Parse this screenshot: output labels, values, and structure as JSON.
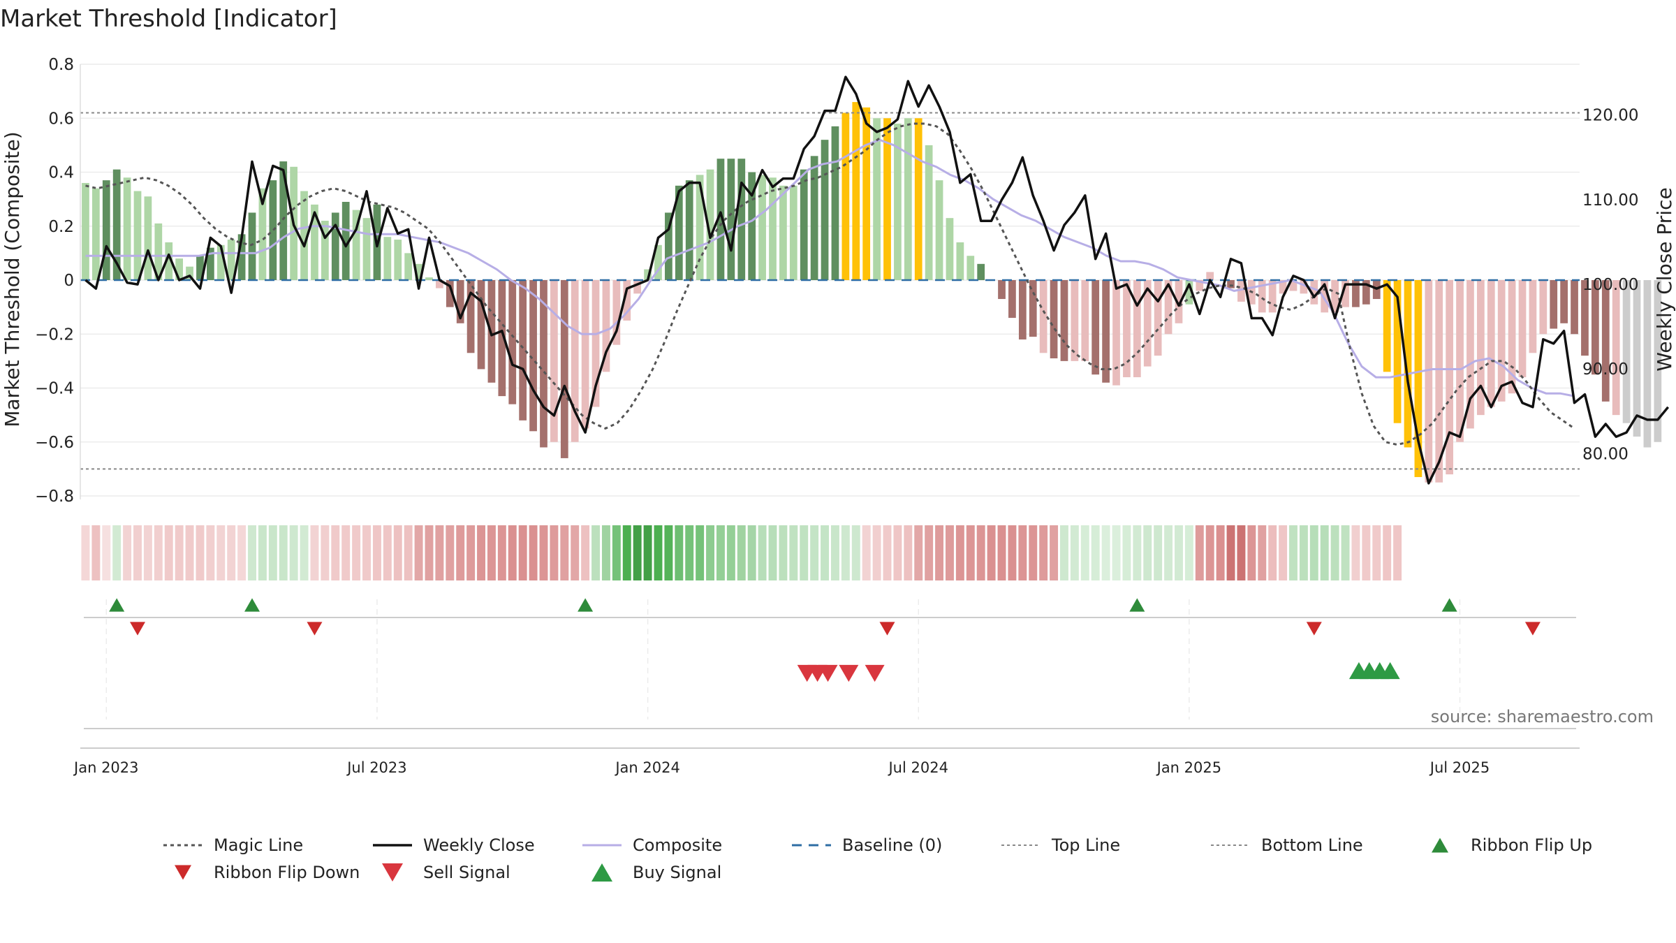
{
  "title": "Market Threshold [Indicator]",
  "source": "source: sharemaestro.com",
  "chart_data": {
    "type": "bar",
    "ylabel": "Market Threshold (Composite)",
    "ylabel_right": "Weekly Close Price",
    "ylim": [
      -0.8,
      0.8
    ],
    "ylim_right": [
      75,
      126
    ],
    "y_ticks": [
      {
        "v": 0.8,
        "label": "0.8"
      },
      {
        "v": 0.6,
        "label": "0.6"
      },
      {
        "v": 0.4,
        "label": "0.4"
      },
      {
        "v": 0.2,
        "label": "0.2"
      },
      {
        "v": 0,
        "label": "0"
      },
      {
        "v": -0.2,
        "label": "−0.2"
      },
      {
        "v": -0.4,
        "label": "−0.4"
      },
      {
        "v": -0.6,
        "label": "−0.6"
      },
      {
        "v": -0.8,
        "label": "−0.8"
      }
    ],
    "y_ticks_right": [
      {
        "v": 120,
        "label": "120.00"
      },
      {
        "v": 110,
        "label": "110.00"
      },
      {
        "v": 100,
        "label": "100.00"
      },
      {
        "v": 90,
        "label": "90.00"
      },
      {
        "v": 80,
        "label": "80.00"
      }
    ],
    "x_ticks": [
      {
        "w": 2.5,
        "label": "Jan 2023"
      },
      {
        "w": 28.5,
        "label": "Jul 2023"
      },
      {
        "w": 54.5,
        "label": "Jan 2024"
      },
      {
        "w": 80.5,
        "label": "Jul 2024"
      },
      {
        "w": 106.5,
        "label": "Jan 2025"
      },
      {
        "w": 132.5,
        "label": "Jul 2025"
      }
    ],
    "weeks": 144,
    "top_line": 0.62,
    "bottom_line": -0.7,
    "composite": [
      0.36,
      0.34,
      0.37,
      0.41,
      0.38,
      0.33,
      0.31,
      0.21,
      0.14,
      0.08,
      0.05,
      0.09,
      0.12,
      0.13,
      0.15,
      0.17,
      0.25,
      0.34,
      0.37,
      0.44,
      0.42,
      0.33,
      0.28,
      0.22,
      0.25,
      0.29,
      0.26,
      0.23,
      0.28,
      0.16,
      0.15,
      0.1,
      0.06,
      0.01,
      -0.03,
      -0.1,
      -0.16,
      -0.27,
      -0.33,
      -0.38,
      -0.43,
      -0.46,
      -0.52,
      -0.56,
      -0.62,
      -0.6,
      -0.66,
      -0.6,
      -0.55,
      -0.47,
      -0.34,
      -0.24,
      -0.15,
      -0.05,
      0.04,
      0.13,
      0.25,
      0.35,
      0.37,
      0.39,
      0.41,
      0.45,
      0.45,
      0.45,
      0.4,
      0.39,
      0.38,
      0.35,
      0.35,
      0.41,
      0.46,
      0.52,
      0.57,
      0.62,
      0.66,
      0.64,
      0.6,
      0.6,
      0.58,
      0.6,
      0.6,
      0.5,
      0.37,
      0.23,
      0.14,
      0.09,
      0.06,
      0.0,
      -0.07,
      -0.14,
      -0.22,
      -0.21,
      -0.27,
      -0.29,
      -0.3,
      -0.3,
      -0.3,
      -0.35,
      -0.38,
      -0.39,
      -0.36,
      -0.36,
      -0.32,
      -0.28,
      -0.2,
      -0.16,
      -0.09,
      -0.04,
      0.03,
      0.0,
      -0.03,
      -0.08,
      -0.09,
      -0.12,
      -0.12,
      -0.05,
      -0.04,
      -0.05,
      -0.09,
      -0.12,
      -0.12,
      -0.1,
      -0.1,
      -0.09,
      -0.07,
      -0.34,
      -0.53,
      -0.62,
      -0.73,
      -0.75,
      -0.75,
      -0.72,
      -0.6,
      -0.55,
      -0.5,
      -0.47,
      -0.45,
      -0.42,
      -0.36,
      -0.27,
      -0.2,
      -0.18,
      -0.16,
      -0.2,
      -0.28,
      -0.35,
      -0.45,
      -0.5,
      -0.53,
      -0.58,
      -0.62,
      -0.6
    ],
    "bar_colors": [
      "#aed6a6",
      "#aed6a6",
      "#5f8f5f",
      "#5f8f5f",
      "#aed6a6",
      "#aed6a6",
      "#aed6a6",
      "#aed6a6",
      "#aed6a6",
      "#aed6a6",
      "#aed6a6",
      "#5f8f5f",
      "#5f8f5f",
      "#aed6a6",
      "#aed6a6",
      "#5f8f5f",
      "#5f8f5f",
      "#aed6a6",
      "#5f8f5f",
      "#5f8f5f",
      "#aed6a6",
      "#aed6a6",
      "#aed6a6",
      "#aed6a6",
      "#5f8f5f",
      "#5f8f5f",
      "#aed6a6",
      "#aed6a6",
      "#5f8f5f",
      "#aed6a6",
      "#aed6a6",
      "#aed6a6",
      "#aed6a6",
      "#aed6a6",
      "#e8bcbc",
      "#a4706c",
      "#a4706c",
      "#a4706c",
      "#a4706c",
      "#a4706c",
      "#a4706c",
      "#a4706c",
      "#a4706c",
      "#a4706c",
      "#a4706c",
      "#e8bcbc",
      "#a4706c",
      "#e8bcbc",
      "#e8bcbc",
      "#e8bcbc",
      "#e8bcbc",
      "#e8bcbc",
      "#e8bcbc",
      "#e8bcbc",
      "#aed6a6",
      "#aed6a6",
      "#5f8f5f",
      "#5f8f5f",
      "#5f8f5f",
      "#aed6a6",
      "#aed6a6",
      "#5f8f5f",
      "#5f8f5f",
      "#5f8f5f",
      "#5f8f5f",
      "#aed6a6",
      "#aed6a6",
      "#aed6a6",
      "#aed6a6",
      "#5f8f5f",
      "#5f8f5f",
      "#5f8f5f",
      "#5f8f5f",
      "#ffc107",
      "#ffc107",
      "#ffc107",
      "#aed6a6",
      "#ffc107",
      "#aed6a6",
      "#aed6a6",
      "#ffc107",
      "#aed6a6",
      "#aed6a6",
      "#aed6a6",
      "#aed6a6",
      "#aed6a6",
      "#5f8f5f",
      "#aed6a6",
      "#a4706c",
      "#a4706c",
      "#a4706c",
      "#a4706c",
      "#e8bcbc",
      "#a4706c",
      "#a4706c",
      "#e8bcbc",
      "#e8bcbc",
      "#a4706c",
      "#a4706c",
      "#e8bcbc",
      "#e8bcbc",
      "#e8bcbc",
      "#e8bcbc",
      "#e8bcbc",
      "#e8bcbc",
      "#e8bcbc",
      "#aed6a6",
      "#e8bcbc",
      "#e8bcbc",
      "#a4706c",
      "#a4706c",
      "#e8bcbc",
      "#e8bcbc",
      "#e8bcbc",
      "#e8bcbc",
      "#e8bcbc",
      "#e8bcbc",
      "#e8bcbc",
      "#e8bcbc",
      "#e8bcbc",
      "#e8bcbc",
      "#e8bcbc",
      "#a4706c",
      "#a4706c",
      "#a4706c",
      "#ffc107",
      "#ffc107",
      "#ffc107",
      "#ffc107",
      "#e8bcbc",
      "#e8bcbc",
      "#e8bcbc",
      "#e8bcbc",
      "#e8bcbc",
      "#e8bcbc",
      "#e8bcbc",
      "#e8bcbc",
      "#e8bcbc",
      "#e8bcbc",
      "#e8bcbc",
      "#e8bcbc",
      "#a4706c",
      "#a4706c",
      "#a4706c",
      "#a4706c",
      "#a4706c",
      "#a4706c",
      "#e8bcbc"
    ],
    "magic_line": [
      0.35,
      0.34,
      0.35,
      0.36,
      0.37,
      0.38,
      0.37,
      0.35,
      0.32,
      0.28,
      0.23,
      0.19,
      0.16,
      0.14,
      0.13,
      0.15,
      0.19,
      0.24,
      0.28,
      0.31,
      0.33,
      0.34,
      0.33,
      0.31,
      0.29,
      0.28,
      0.27,
      0.25,
      0.22,
      0.19,
      0.14,
      0.08,
      0.02,
      -0.04,
      -0.1,
      -0.15,
      -0.2,
      -0.25,
      -0.3,
      -0.35,
      -0.4,
      -0.45,
      -0.5,
      -0.53,
      -0.55,
      -0.53,
      -0.48,
      -0.41,
      -0.33,
      -0.23,
      -0.12,
      -0.02,
      0.08,
      0.16,
      0.22,
      0.26,
      0.29,
      0.31,
      0.33,
      0.34,
      0.35,
      0.37,
      0.38,
      0.4,
      0.42,
      0.45,
      0.48,
      0.52,
      0.55,
      0.57,
      0.58,
      0.58,
      0.57,
      0.54,
      0.48,
      0.41,
      0.33,
      0.24,
      0.15,
      0.06,
      -0.03,
      -0.11,
      -0.18,
      -0.24,
      -0.28,
      -0.31,
      -0.33,
      -0.33,
      -0.31,
      -0.27,
      -0.22,
      -0.17,
      -0.12,
      -0.08,
      -0.05,
      -0.03,
      -0.02,
      -0.02,
      -0.03,
      -0.05,
      -0.08,
      -0.1,
      -0.11,
      -0.09,
      -0.06,
      -0.03,
      -0.05,
      -0.25,
      -0.42,
      -0.54,
      -0.6,
      -0.61,
      -0.6,
      -0.57,
      -0.53,
      -0.47,
      -0.41,
      -0.36,
      -0.33,
      -0.3,
      -0.3,
      -0.33,
      -0.38,
      -0.44,
      -0.49,
      -0.52,
      -0.55
    ],
    "composite_line": [
      0.09,
      0.09,
      0.09,
      0.09,
      0.09,
      0.09,
      0.09,
      0.09,
      0.09,
      0.1,
      0.1,
      0.1,
      0.1,
      0.12,
      0.16,
      0.19,
      0.2,
      0.2,
      0.19,
      0.18,
      0.17,
      0.17,
      0.17,
      0.16,
      0.15,
      0.14,
      0.12,
      0.1,
      0.07,
      0.04,
      0.0,
      -0.03,
      -0.07,
      -0.12,
      -0.17,
      -0.2,
      -0.2,
      -0.18,
      -0.13,
      -0.07,
      0.01,
      0.08,
      0.1,
      0.12,
      0.14,
      0.17,
      0.2,
      0.22,
      0.26,
      0.31,
      0.36,
      0.41,
      0.43,
      0.44,
      0.47,
      0.5,
      0.52,
      0.5,
      0.47,
      0.44,
      0.42,
      0.39,
      0.37,
      0.34,
      0.3,
      0.27,
      0.24,
      0.22,
      0.19,
      0.16,
      0.14,
      0.12,
      0.09,
      0.07,
      0.07,
      0.06,
      0.04,
      0.01,
      0.0,
      -0.01,
      -0.02,
      -0.04,
      -0.03,
      -0.02,
      -0.01,
      0.0,
      -0.02,
      -0.04,
      -0.12,
      -0.23,
      -0.32,
      -0.36,
      -0.36,
      -0.35,
      -0.34,
      -0.33,
      -0.33,
      -0.33,
      -0.3,
      -0.29,
      -0.32,
      -0.37,
      -0.4,
      -0.42,
      -0.42,
      -0.43
    ],
    "weekly_close": [
      100.5,
      99.5,
      104.5,
      102.5,
      100.2,
      100.0,
      104.0,
      100.5,
      103.5,
      100.5,
      101.0,
      99.5,
      105.5,
      104.5,
      99.0,
      105.5,
      114.5,
      109.5,
      114.0,
      113.5,
      107.0,
      104.5,
      108.5,
      105.5,
      107.0,
      104.5,
      106.5,
      111.0,
      104.5,
      109.0,
      106.0,
      106.5,
      99.5,
      105.5,
      100.5,
      99.8,
      96.0,
      99.0,
      98.0,
      94.0,
      94.5,
      90.5,
      90.0,
      87.5,
      85.5,
      84.5,
      88.0,
      85.0,
      82.5,
      88.0,
      92.0,
      94.5,
      99.5,
      100.0,
      100.5,
      105.5,
      106.5,
      111.0,
      112.0,
      112.0,
      105.5,
      108.5,
      104.0,
      112.0,
      110.5,
      113.5,
      111.5,
      112.5,
      112.5,
      116.0,
      117.5,
      120.5,
      120.5,
      124.5,
      122.5,
      119.0,
      118.0,
      118.5,
      119.5,
      124.0,
      121.0,
      123.5,
      121.0,
      118.0,
      112.0,
      113.0,
      107.5,
      107.5,
      110.0,
      112.0,
      115.0,
      110.5,
      107.5,
      104.0,
      107.0,
      108.5,
      110.5,
      103.0,
      106.0,
      99.5,
      100.0,
      97.5,
      99.5,
      98.0,
      100.0,
      97.5,
      100.0,
      96.5,
      100.5,
      98.5,
      103.0,
      102.5,
      96.0,
      96.0,
      94.0,
      98.5,
      101.0,
      100.5,
      98.5,
      100.0,
      96.0,
      100.0,
      100.0,
      100.0,
      99.5,
      100.0,
      98.5,
      88.5,
      81.5,
      76.5,
      79.0,
      82.5,
      82.0,
      86.5,
      88.0,
      85.5,
      88.0,
      88.5,
      86.0,
      85.5,
      93.5,
      93.0,
      94.5,
      86.0,
      87.0,
      82.0,
      83.5,
      82.0,
      82.5,
      84.5,
      84.0,
      84.0,
      85.5
    ],
    "ribbon": [
      {
        "c": "#e6a7a7",
        "a": 0.45
      },
      {
        "c": "#e6a7a7",
        "a": 0.7
      },
      {
        "c": "#e6a7a7",
        "a": 0.35
      },
      {
        "c": "#a5d6a7",
        "a": 0.5
      },
      {
        "c": "#e6a7a7",
        "a": 0.5
      },
      {
        "c": "#e6a7a7",
        "a": 0.55
      },
      {
        "c": "#e6a7a7",
        "a": 0.5
      },
      {
        "c": "#e6a7a7",
        "a": 0.55
      },
      {
        "c": "#e6a7a7",
        "a": 0.6
      },
      {
        "c": "#e6a7a7",
        "a": 0.6
      },
      {
        "c": "#e6a7a7",
        "a": 0.6
      },
      {
        "c": "#e6a7a7",
        "a": 0.6
      },
      {
        "c": "#e6a7a7",
        "a": 0.55
      },
      {
        "c": "#e6a7a7",
        "a": 0.5
      },
      {
        "c": "#e6a7a7",
        "a": 0.5
      },
      {
        "c": "#e6a7a7",
        "a": 0.45
      },
      {
        "c": "#a5d6a7",
        "a": 0.55
      },
      {
        "c": "#a5d6a7",
        "a": 0.6
      },
      {
        "c": "#a5d6a7",
        "a": 0.6
      },
      {
        "c": "#a5d6a7",
        "a": 0.6
      },
      {
        "c": "#a5d6a7",
        "a": 0.55
      },
      {
        "c": "#a5d6a7",
        "a": 0.5
      },
      {
        "c": "#e6a7a7",
        "a": 0.5
      },
      {
        "c": "#e6a7a7",
        "a": 0.55
      },
      {
        "c": "#e6a7a7",
        "a": 0.6
      },
      {
        "c": "#e6a7a7",
        "a": 0.6
      },
      {
        "c": "#e6a7a7",
        "a": 0.6
      },
      {
        "c": "#e6a7a7",
        "a": 0.6
      },
      {
        "c": "#e6a7a7",
        "a": 0.65
      },
      {
        "c": "#e6a7a7",
        "a": 0.65
      },
      {
        "c": "#e6a7a7",
        "a": 0.7
      },
      {
        "c": "#e6a7a7",
        "a": 0.7
      },
      {
        "c": "#d88a8a",
        "a": 0.75
      },
      {
        "c": "#d88a8a",
        "a": 0.8
      },
      {
        "c": "#d88a8a",
        "a": 0.8
      },
      {
        "c": "#d88a8a",
        "a": 0.8
      },
      {
        "c": "#d88a8a",
        "a": 0.85
      },
      {
        "c": "#d88a8a",
        "a": 0.85
      },
      {
        "c": "#d88a8a",
        "a": 0.9
      },
      {
        "c": "#d88a8a",
        "a": 0.9
      },
      {
        "c": "#d88a8a",
        "a": 0.9
      },
      {
        "c": "#d88a8a",
        "a": 0.95
      },
      {
        "c": "#d88a8a",
        "a": 0.95
      },
      {
        "c": "#d88a8a",
        "a": 0.95
      },
      {
        "c": "#d88a8a",
        "a": 0.9
      },
      {
        "c": "#d88a8a",
        "a": 0.85
      },
      {
        "c": "#d88a8a",
        "a": 0.8
      },
      {
        "c": "#d88a8a",
        "a": 0.75
      },
      {
        "c": "#e6a7a7",
        "a": 0.7
      },
      {
        "c": "#a5d6a7",
        "a": 0.75
      },
      {
        "c": "#8fcb91",
        "a": 0.85
      },
      {
        "c": "#66bb6a",
        "a": 0.9
      },
      {
        "c": "#4caf50",
        "a": 1.0
      },
      {
        "c": "#43a047",
        "a": 1.0
      },
      {
        "c": "#43a047",
        "a": 1.0
      },
      {
        "c": "#4caf50",
        "a": 1.0
      },
      {
        "c": "#4caf50",
        "a": 0.95
      },
      {
        "c": "#66bb6a",
        "a": 0.95
      },
      {
        "c": "#66bb6a",
        "a": 0.9
      },
      {
        "c": "#66bb6a",
        "a": 0.9
      },
      {
        "c": "#81c784",
        "a": 0.9
      },
      {
        "c": "#81c784",
        "a": 0.85
      },
      {
        "c": "#81c784",
        "a": 0.85
      },
      {
        "c": "#8fcb91",
        "a": 0.85
      },
      {
        "c": "#8fcb91",
        "a": 0.8
      },
      {
        "c": "#a5d6a7",
        "a": 0.8
      },
      {
        "c": "#a5d6a7",
        "a": 0.8
      },
      {
        "c": "#a5d6a7",
        "a": 0.75
      },
      {
        "c": "#a5d6a7",
        "a": 0.7
      },
      {
        "c": "#a5d6a7",
        "a": 0.7
      },
      {
        "c": "#a5d6a7",
        "a": 0.65
      },
      {
        "c": "#a5d6a7",
        "a": 0.65
      },
      {
        "c": "#a5d6a7",
        "a": 0.6
      },
      {
        "c": "#a5d6a7",
        "a": 0.55
      },
      {
        "c": "#a5d6a7",
        "a": 0.55
      },
      {
        "c": "#e6a7a7",
        "a": 0.5
      },
      {
        "c": "#e6a7a7",
        "a": 0.55
      },
      {
        "c": "#e6a7a7",
        "a": 0.6
      },
      {
        "c": "#e6a7a7",
        "a": 0.65
      },
      {
        "c": "#e6a7a7",
        "a": 0.7
      },
      {
        "c": "#d88a8a",
        "a": 0.75
      },
      {
        "c": "#d88a8a",
        "a": 0.8
      },
      {
        "c": "#d88a8a",
        "a": 0.85
      },
      {
        "c": "#d88a8a",
        "a": 0.85
      },
      {
        "c": "#d88a8a",
        "a": 0.9
      },
      {
        "c": "#d88a8a",
        "a": 0.9
      },
      {
        "c": "#d88a8a",
        "a": 0.9
      },
      {
        "c": "#d88a8a",
        "a": 0.95
      },
      {
        "c": "#d88a8a",
        "a": 0.95
      },
      {
        "c": "#d88a8a",
        "a": 0.95
      },
      {
        "c": "#d88a8a",
        "a": 0.9
      },
      {
        "c": "#d88a8a",
        "a": 0.9
      },
      {
        "c": "#d88a8a",
        "a": 0.85
      },
      {
        "c": "#d88a8a",
        "a": 0.8
      },
      {
        "c": "#a5d6a7",
        "a": 0.55
      },
      {
        "c": "#a5d6a7",
        "a": 0.5
      },
      {
        "c": "#a5d6a7",
        "a": 0.45
      },
      {
        "c": "#a5d6a7",
        "a": 0.45
      },
      {
        "c": "#a5d6a7",
        "a": 0.4
      },
      {
        "c": "#a5d6a7",
        "a": 0.4
      },
      {
        "c": "#a5d6a7",
        "a": 0.45
      },
      {
        "c": "#a5d6a7",
        "a": 0.5
      },
      {
        "c": "#a5d6a7",
        "a": 0.55
      },
      {
        "c": "#a5d6a7",
        "a": 0.55
      },
      {
        "c": "#a5d6a7",
        "a": 0.5
      },
      {
        "c": "#a5d6a7",
        "a": 0.5
      },
      {
        "c": "#a5d6a7",
        "a": 0.45
      },
      {
        "c": "#d88a8a",
        "a": 0.85
      },
      {
        "c": "#d88a8a",
        "a": 0.9
      },
      {
        "c": "#d88a8a",
        "a": 0.95
      },
      {
        "c": "#c96b6b",
        "a": 0.95
      },
      {
        "c": "#c96b6b",
        "a": 0.95
      },
      {
        "c": "#d88a8a",
        "a": 0.9
      },
      {
        "c": "#d88a8a",
        "a": 0.8
      },
      {
        "c": "#e6a7a7",
        "a": 0.75
      },
      {
        "c": "#e6a7a7",
        "a": 0.65
      },
      {
        "c": "#a5d6a7",
        "a": 0.7
      },
      {
        "c": "#a5d6a7",
        "a": 0.75
      },
      {
        "c": "#a5d6a7",
        "a": 0.8
      },
      {
        "c": "#a5d6a7",
        "a": 0.8
      },
      {
        "c": "#a5d6a7",
        "a": 0.75
      },
      {
        "c": "#a5d6a7",
        "a": 0.7
      },
      {
        "c": "#e6a7a7",
        "a": 0.55
      },
      {
        "c": "#e6a7a7",
        "a": 0.6
      },
      {
        "c": "#e6a7a7",
        "a": 0.6
      },
      {
        "c": "#e6a7a7",
        "a": 0.65
      },
      {
        "c": "#e6a7a7",
        "a": 0.65
      }
    ],
    "ribbon_flip_up": [
      3,
      16,
      48,
      101,
      131
    ],
    "ribbon_flip_down": [
      5,
      22,
      77,
      118,
      139
    ],
    "sell_signals": [
      69.3,
      70.3,
      71.3,
      73.3,
      75.8
    ],
    "buy_signals": [
      122.3,
      123.3,
      124.3,
      125.3
    ],
    "legend": [
      {
        "key": "magic",
        "label": "Magic Line"
      },
      {
        "key": "close",
        "label": "Weekly Close"
      },
      {
        "key": "composite",
        "label": "Composite"
      },
      {
        "key": "baseline",
        "label": "Baseline (0)"
      },
      {
        "key": "top",
        "label": "Top Line"
      },
      {
        "key": "bottom",
        "label": "Bottom Line"
      },
      {
        "key": "flipup",
        "label": "Ribbon Flip Up"
      },
      {
        "key": "flipdown",
        "label": "Ribbon Flip Down"
      },
      {
        "key": "sell",
        "label": "Sell Signal"
      },
      {
        "key": "buy",
        "label": "Buy Signal"
      }
    ],
    "colors": {
      "magic": "#555555",
      "close": "#111111",
      "composite": "#b7aee6",
      "baseline": "#2e6da4",
      "ref": "#888888",
      "flipup": "#2e8b3a",
      "flipdown": "#cc2a2a",
      "sell": "#d9363e",
      "buy": "#2e9a44"
    }
  }
}
